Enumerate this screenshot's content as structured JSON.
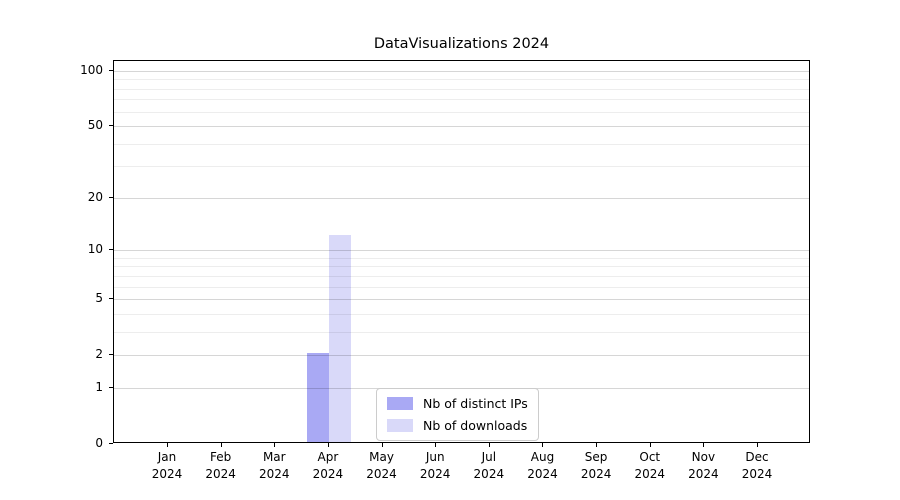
{
  "chart_data": {
    "type": "bar",
    "title": "DataVisualizations 2024",
    "categories": [
      "Jan 2024",
      "Feb 2024",
      "Mar 2024",
      "Apr 2024",
      "May 2024",
      "Jun 2024",
      "Jul 2024",
      "Aug 2024",
      "Sep 2024",
      "Oct 2024",
      "Nov 2024",
      "Dec 2024"
    ],
    "series": [
      {
        "name": "Nb of distinct IPs",
        "color": "#a9a9f4",
        "values": [
          0,
          0,
          0,
          2,
          0,
          0,
          0,
          0,
          0,
          0,
          0,
          0
        ]
      },
      {
        "name": "Nb of downloads",
        "color": "#d9d9f9",
        "values": [
          0,
          0,
          0,
          12,
          0,
          0,
          0,
          0,
          0,
          0,
          0,
          0
        ]
      }
    ],
    "xlabel": "",
    "ylabel": "",
    "y_axis": {
      "scale": "log1p",
      "ticks": [
        0,
        1,
        2,
        5,
        10,
        20,
        50,
        100
      ],
      "minor_gridlines": [
        3,
        4,
        6,
        7,
        8,
        9,
        30,
        40,
        60,
        70,
        80,
        90
      ],
      "ylim": [
        0,
        113
      ]
    },
    "grid": true,
    "legend": {
      "position": "lower center"
    }
  },
  "colors": {
    "bar_distinct_ips": "#a9a9f4",
    "bar_downloads": "#d9d9f9",
    "spine": "#000000",
    "legend_border": "#cccccc"
  }
}
